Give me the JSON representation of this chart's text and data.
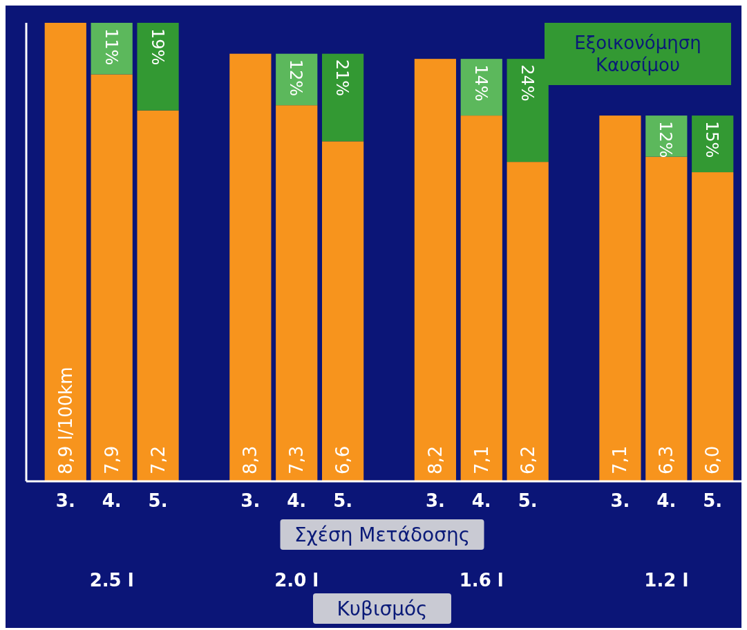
{
  "chart_data": {
    "type": "bar",
    "stacked": true,
    "xlabel": "Σχέση Μετάδοσης",
    "categories": [
      "3.",
      "4.",
      "5.",
      null,
      "3.",
      "4.",
      "5.",
      null,
      "3.",
      "4.",
      "5.",
      null,
      "3.",
      "4.",
      "5."
    ],
    "series": [
      {
        "color": "#f7941d",
        "values": [
          8.9,
          7.9,
          7.2,
          null,
          8.3,
          7.3,
          6.6,
          null,
          8.2,
          7.1,
          6.2,
          null,
          7.1,
          6.3,
          6.0
        ],
        "value_labels": [
          "8,9 l/100km",
          "7,9",
          "7,2",
          null,
          "8,3",
          "7,3",
          "6,6",
          null,
          "8,2",
          "7,1",
          "6,2",
          null,
          "7,1",
          "6,3",
          "6,0"
        ]
      },
      {
        "name": "Εξοικονόμηση Καυσίμου",
        "color": "#339933",
        "colors": [
          null,
          "#5cb85c",
          "#339933",
          null,
          null,
          "#5cb85c",
          "#339933",
          null,
          null,
          "#5cb85c",
          "#339933",
          null,
          null,
          "#5cb85c",
          "#339933"
        ],
        "values": [
          null,
          1.0,
          1.7,
          null,
          null,
          1.0,
          1.7,
          null,
          null,
          1.1,
          2.0,
          null,
          null,
          0.8,
          1.1
        ]
      }
    ],
    "ylim": [
      0,
      8.9
    ],
    "tick_labels": "x",
    "legend": "top right",
    "annotations": [
      "11%",
      "19%",
      "12%",
      "21%",
      "14%",
      "24%",
      "12%",
      "15%",
      "2.5 l",
      "2.0 l",
      "1.6 l",
      "1.2 l",
      "Κυβισμός"
    ]
  }
}
